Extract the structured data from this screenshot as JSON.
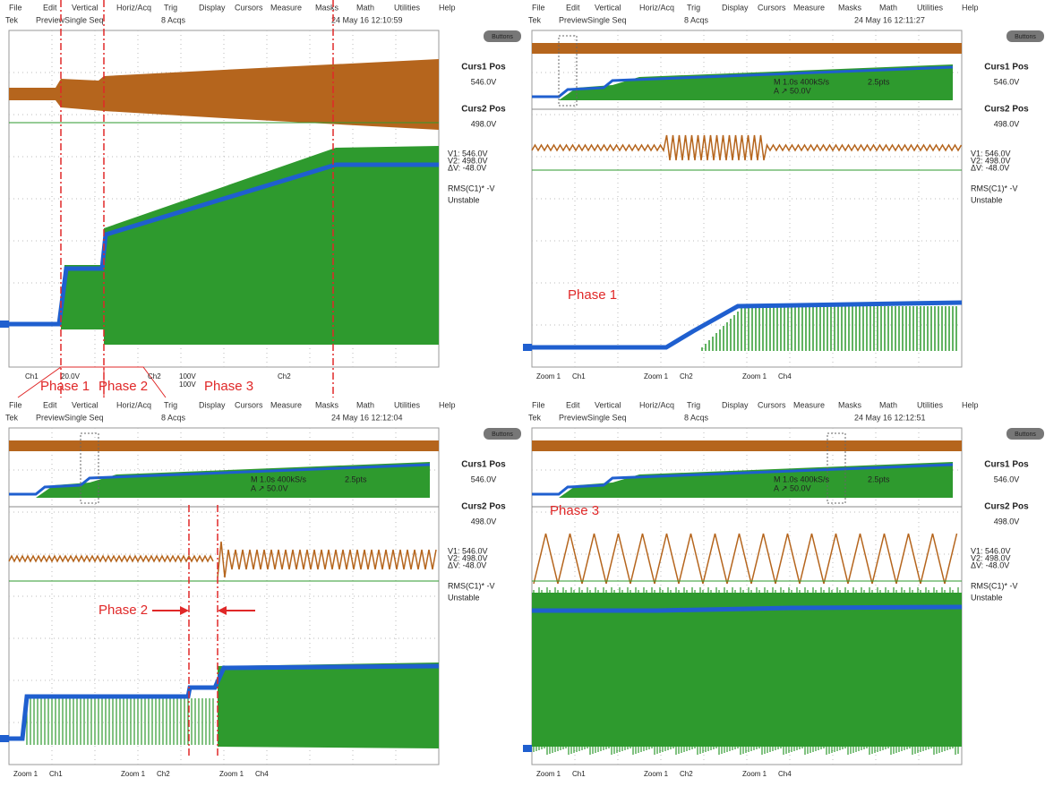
{
  "menu": [
    "File",
    "Edit",
    "Vertical",
    "Horiz/Acq",
    "Trig",
    "Display",
    "Cursors",
    "Measure",
    "Masks",
    "Math",
    "Utilities",
    "Help"
  ],
  "status": [
    "Tek",
    "Preview",
    "Single Seq",
    "8 Acqs"
  ],
  "button": "Buttons",
  "readouts": [
    "Curs1 Pos",
    "546.0V",
    "Curs2 Pos",
    "498.0V",
    "V1:   546.0V",
    "V2:   498.0V",
    "ΔV:   -48.0V",
    "RMS(C1)*   -V",
    "Unstable"
  ],
  "zoom": [
    "M 1.0s 400kS/s",
    "A  ↗  50.0V",
    "2.5pts"
  ],
  "panels": [
    {
      "timestamp": "24 May 16 12:10:59",
      "footer": [
        "Ch1",
        "20.0V",
        "Ch2",
        "100V",
        "100V",
        "Ch2"
      ],
      "annotations": [
        "Phase 1",
        "Phase 2",
        "Phase 3"
      ]
    },
    {
      "timestamp": "24 May 16 12:11:27",
      "footer": [
        "Zoom 1",
        "Ch1",
        "Zoom 1",
        "Ch2",
        "Zoom 1",
        "Ch4"
      ],
      "annotations": [
        "Phase 1"
      ]
    },
    {
      "timestamp": "24 May 16 12:12:04",
      "footer": [
        "Zoom 1",
        "Ch1",
        "Zoom 1",
        "Ch2",
        "Zoom 1",
        "Ch4"
      ],
      "annotations": [
        "Phase 2"
      ]
    },
    {
      "timestamp": "24 May 16 12:12:51",
      "footer": [
        "Zoom 1",
        "Ch1",
        "Zoom 1",
        "Ch2",
        "Zoom 1",
        "Ch4"
      ],
      "annotations": [
        "Phase 3"
      ]
    }
  ]
}
